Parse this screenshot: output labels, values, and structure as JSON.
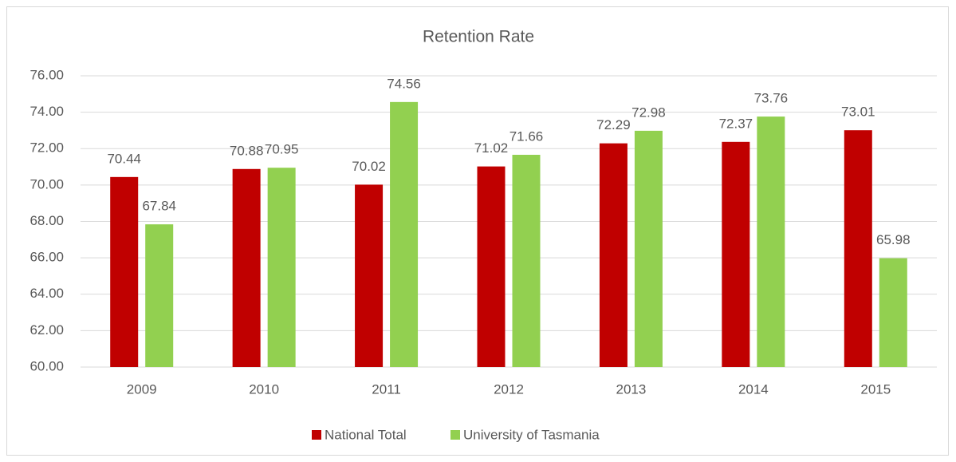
{
  "chart_data": {
    "type": "bar",
    "title": "Retention Rate",
    "categories": [
      "2009",
      "2010",
      "2011",
      "2012",
      "2013",
      "2014",
      "2015"
    ],
    "series": [
      {
        "name": "National Total",
        "color": "#c00000",
        "values": [
          70.44,
          70.88,
          70.02,
          71.02,
          72.29,
          72.37,
          73.01
        ]
      },
      {
        "name": "University of Tasmania",
        "color": "#92d050",
        "values": [
          67.84,
          70.95,
          74.56,
          71.66,
          72.98,
          73.76,
          65.98
        ]
      }
    ],
    "ylim": [
      60,
      76
    ],
    "yticks": [
      {
        "value": 60,
        "label": "60.00"
      },
      {
        "value": 62,
        "label": "62.00"
      },
      {
        "value": 64,
        "label": "64.00"
      },
      {
        "value": 66,
        "label": "66.00"
      },
      {
        "value": 68,
        "label": "68.00"
      },
      {
        "value": 70,
        "label": "70.00"
      },
      {
        "value": 72,
        "label": "72.00"
      },
      {
        "value": 74,
        "label": "74.00"
      },
      {
        "value": 76,
        "label": "76.00"
      }
    ],
    "grid": true,
    "legend": "bottom"
  }
}
